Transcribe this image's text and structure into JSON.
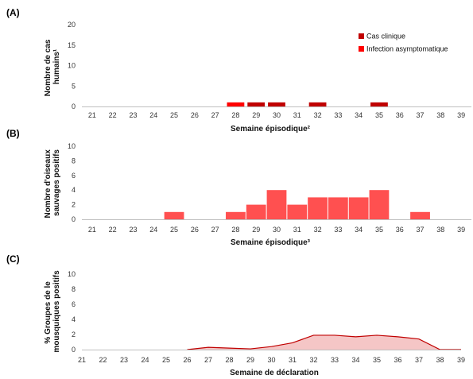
{
  "chart_data": [
    {
      "type": "bar",
      "panel_label": "(A)",
      "title": "",
      "xlabel": "Semaine épisodique²",
      "ylabel_lines": [
        "Nombre de cas",
        "humains¹"
      ],
      "ylim": [
        0,
        20
      ],
      "yticks": [
        0,
        5,
        10,
        15,
        20
      ],
      "categories": [
        "21",
        "22",
        "23",
        "24",
        "25",
        "26",
        "27",
        "28",
        "29",
        "30",
        "31",
        "32",
        "33",
        "34",
        "35",
        "36",
        "37",
        "38",
        "39"
      ],
      "stacked": true,
      "legend_position": "top-right",
      "series": [
        {
          "name": "Cas clinique",
          "color": "#c00000",
          "values": [
            0,
            0,
            0,
            0,
            0,
            0,
            0,
            0,
            1,
            1,
            0,
            1,
            0,
            0,
            1,
            0,
            0,
            0,
            0
          ]
        },
        {
          "name": "Infection asymptomatique",
          "color": "#ff0000",
          "values": [
            0,
            0,
            0,
            0,
            0,
            0,
            0,
            1,
            0,
            0,
            0,
            0,
            0,
            0,
            0,
            0,
            0,
            0,
            0
          ]
        }
      ]
    },
    {
      "type": "bar",
      "panel_label": "(B)",
      "title": "",
      "xlabel": "Semaine épisodique³",
      "ylabel_lines": [
        "Nombre d'oiseaux",
        "sauvages positifs"
      ],
      "ylim": [
        0,
        10
      ],
      "yticks": [
        0,
        2,
        4,
        6,
        8,
        10
      ],
      "categories": [
        "21",
        "22",
        "23",
        "24",
        "25",
        "26",
        "27",
        "28",
        "29",
        "30",
        "31",
        "32",
        "33",
        "34",
        "35",
        "36",
        "37",
        "38",
        "39"
      ],
      "series": [
        {
          "color": "#ff5050",
          "values": [
            0,
            0,
            0,
            0,
            1,
            0,
            0,
            1,
            2,
            4,
            2,
            3,
            3,
            3,
            4,
            0,
            1,
            0,
            0
          ]
        }
      ]
    },
    {
      "type": "area",
      "panel_label": "(C)",
      "title": "",
      "xlabel": "Semaine de déclaration",
      "ylabel_lines": [
        "% Groupes de le",
        "mousquiques positifs"
      ],
      "ylim": [
        0,
        10
      ],
      "yticks": [
        0,
        2,
        4,
        6,
        8,
        10
      ],
      "categories": [
        "21",
        "22",
        "23",
        "24",
        "25",
        "26",
        "27",
        "28",
        "29",
        "30",
        "31",
        "32",
        "33",
        "34",
        "35",
        "36",
        "37",
        "38",
        "39"
      ],
      "series": [
        {
          "line_color": "#c00000",
          "fill_color": "#f5c6c6",
          "start_index": 5,
          "values": [
            0,
            0,
            0,
            0,
            0,
            0,
            0.3,
            0.2,
            0.1,
            0.4,
            0.9,
            1.9,
            1.9,
            1.7,
            1.9,
            1.7,
            1.4,
            0,
            0
          ]
        }
      ]
    }
  ]
}
